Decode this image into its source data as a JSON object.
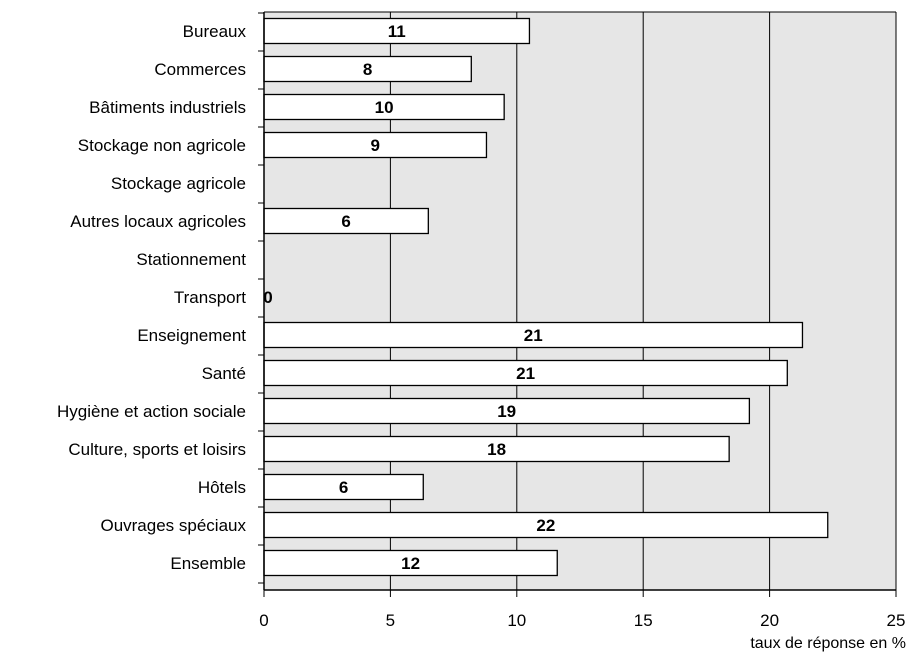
{
  "chart_data": {
    "type": "bar",
    "orientation": "horizontal",
    "categories": [
      "Bureaux",
      "Commerces",
      "Bâtiments industriels",
      "Stockage non agricole",
      "Stockage agricole",
      "Autres locaux agricoles",
      "Stationnement",
      "Transport",
      "Enseignement",
      "Santé",
      "Hygiène et action sociale",
      "Culture, sports et loisirs",
      "Hôtels",
      "Ouvrages spéciaux",
      "Ensemble"
    ],
    "values": [
      10.5,
      8.2,
      9.5,
      8.8,
      null,
      6.5,
      null,
      0,
      21.3,
      20.7,
      19.2,
      18.4,
      6.3,
      22.3,
      11.6
    ],
    "data_labels": [
      "11",
      "8",
      "10",
      "9",
      "",
      "6",
      "",
      "0",
      "21",
      "21",
      "19",
      "18",
      "6",
      "22",
      "12"
    ],
    "xlabel": "taux de réponse en %",
    "xlim": [
      0,
      25
    ],
    "x_ticks": [
      "0",
      "5",
      "10",
      "15",
      "20",
      "25"
    ],
    "grid": true,
    "colors": {
      "plot_background": "#e6e6e6",
      "bar_fill": "#ffffff",
      "bar_stroke": "#000000",
      "gridline": "#000000"
    }
  }
}
